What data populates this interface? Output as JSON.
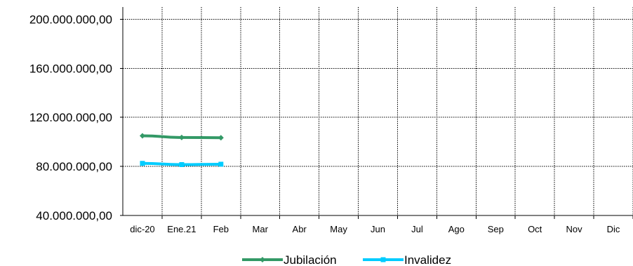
{
  "chart_data": {
    "type": "line",
    "categories": [
      "dic-20",
      "Ene.21",
      "Feb",
      "Mar",
      "Abr",
      "May",
      "Jun",
      "Jul",
      "Ago",
      "Sep",
      "Oct",
      "Nov",
      "Dic"
    ],
    "y_ticks": [
      "40.000.000,00",
      "80.000.000,00",
      "120.000.000,00",
      "160.000.000,00",
      "200.000.000,00"
    ],
    "ylim": [
      40000000,
      210000000
    ],
    "grid": true,
    "legend_position": "bottom",
    "series": [
      {
        "name": "Jubilación",
        "color": "#339966",
        "marker": "diamond",
        "values": [
          105000000,
          103600000,
          103400000,
          null,
          null,
          null,
          null,
          null,
          null,
          null,
          null,
          null,
          null
        ]
      },
      {
        "name": "Invalidez",
        "color": "#00ccff",
        "marker": "square",
        "values": [
          82500000,
          81500000,
          81800000,
          null,
          null,
          null,
          null,
          null,
          null,
          null,
          null,
          null,
          null
        ]
      }
    ]
  }
}
